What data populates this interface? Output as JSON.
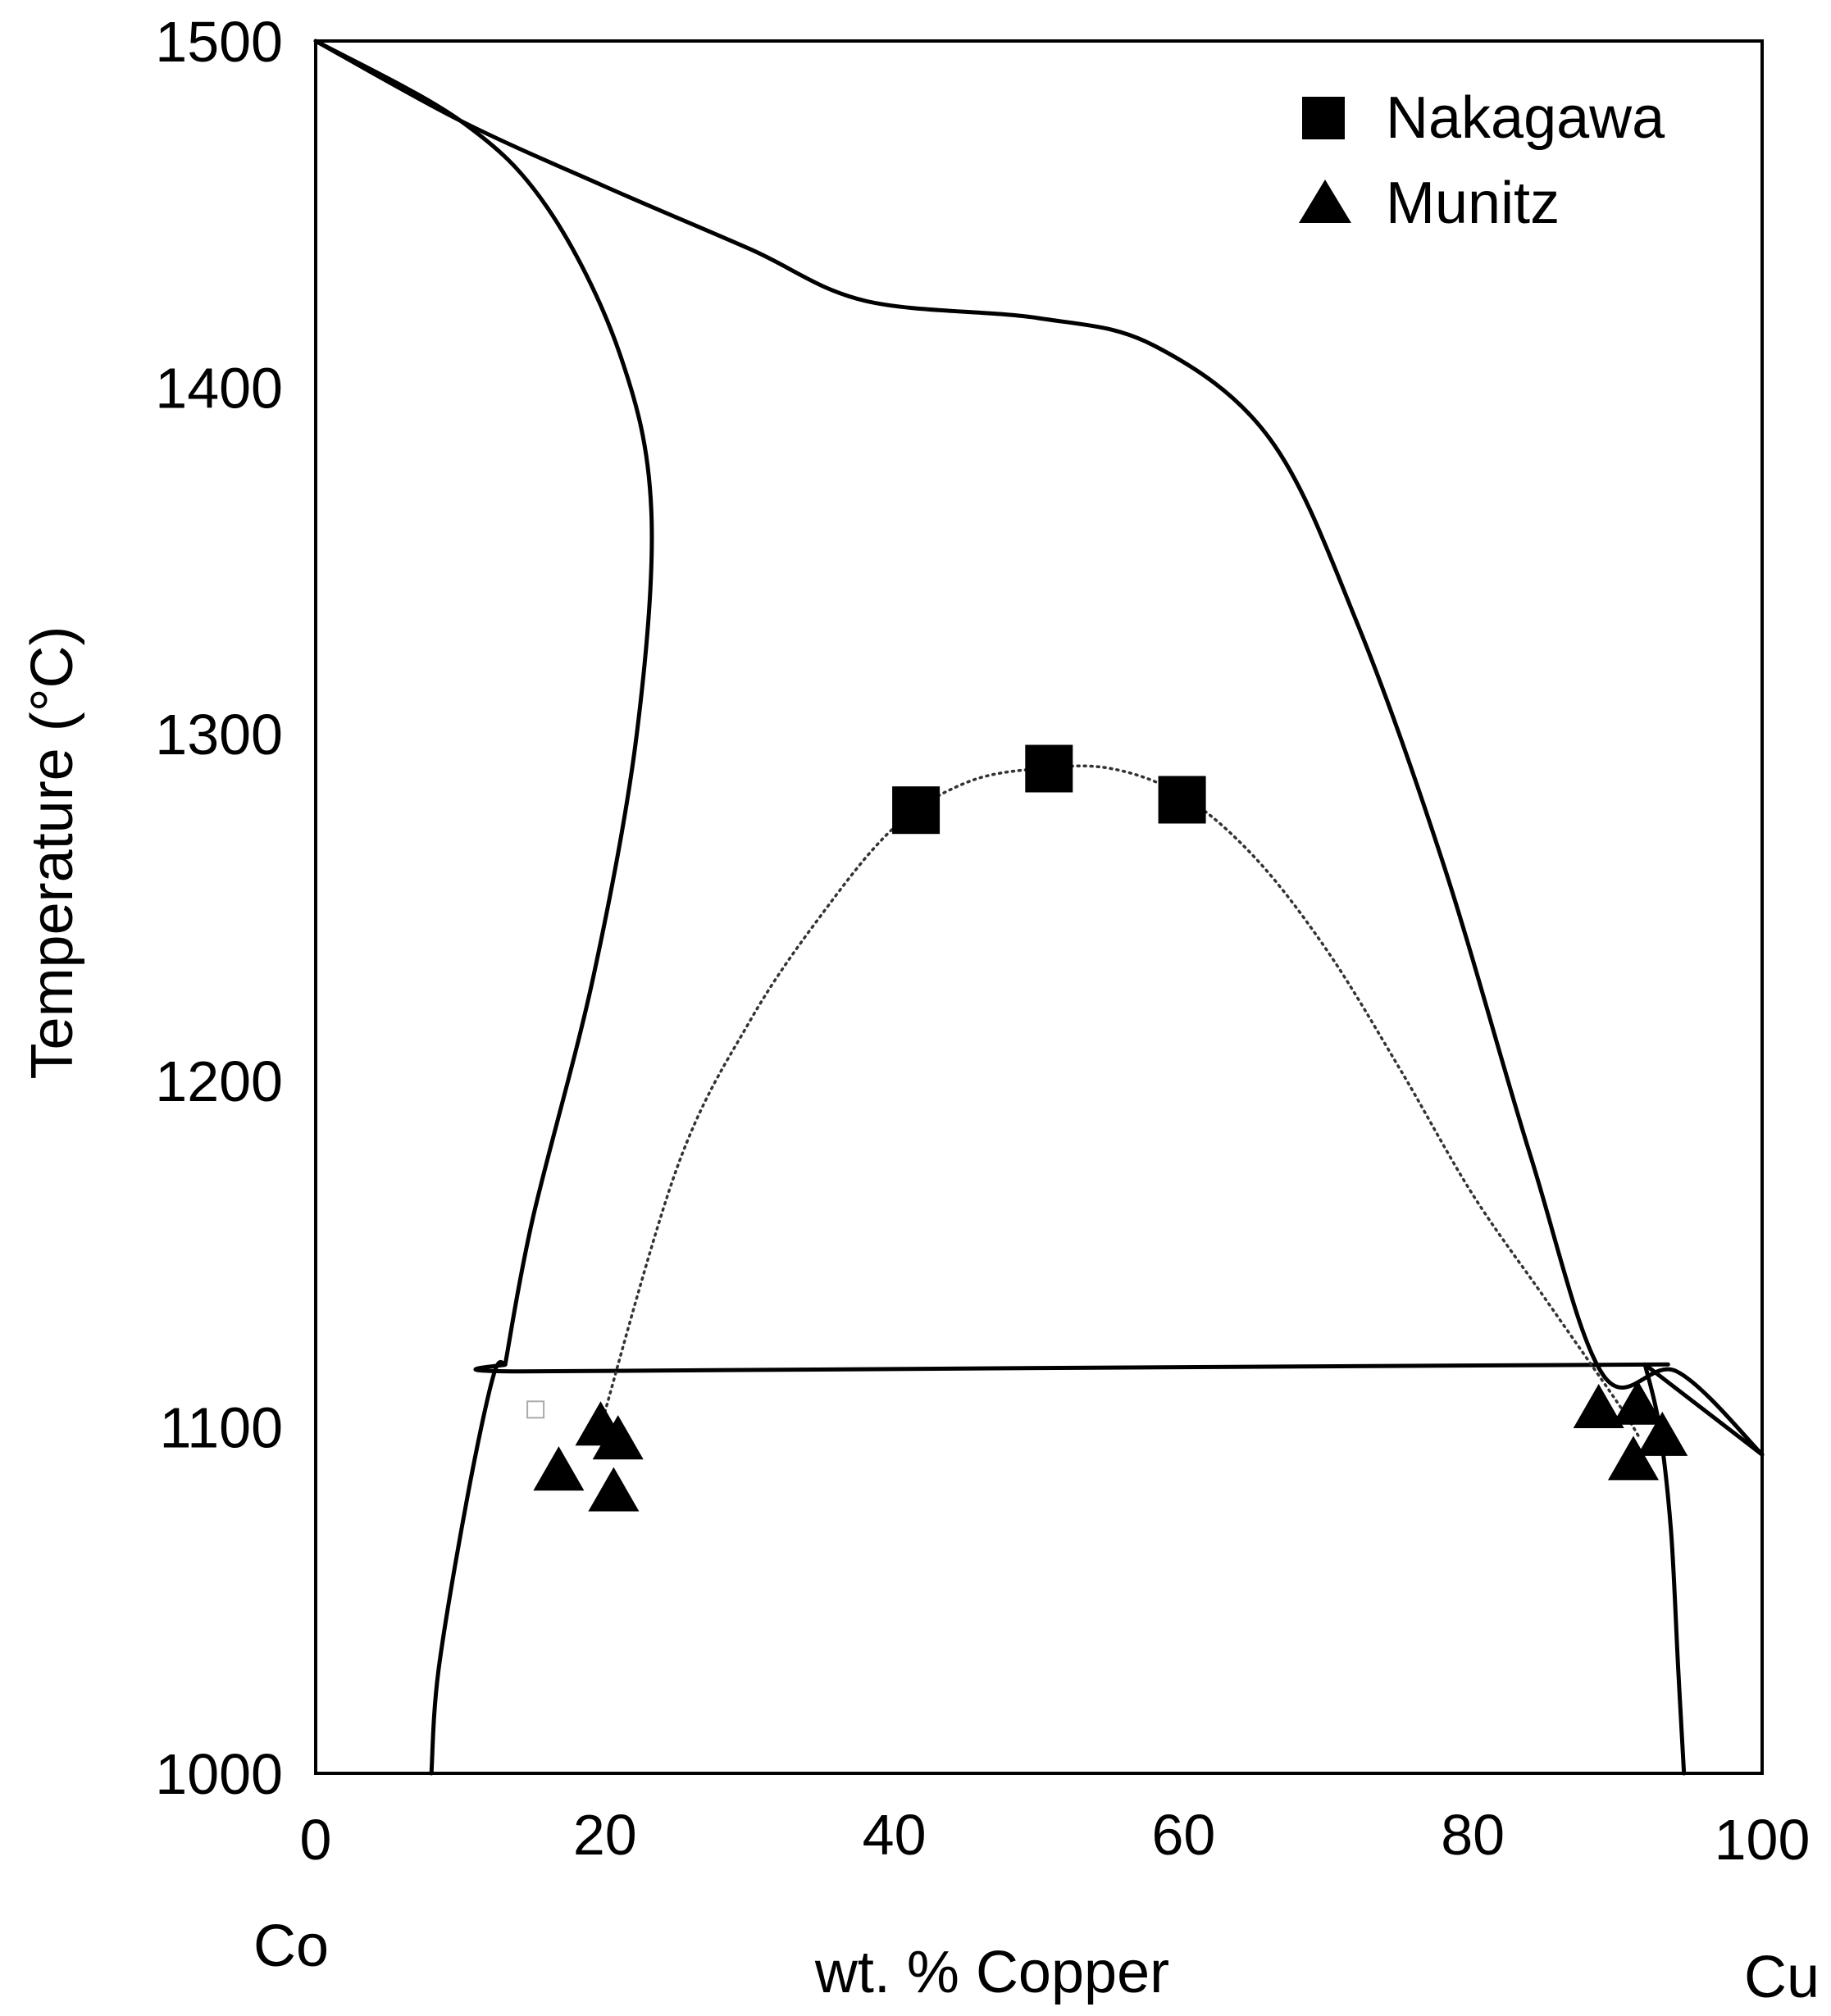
{
  "chart_data": {
    "type": "scatter",
    "title": "",
    "xlabel": "wt. % Copper",
    "ylabel": "Temperature (°C)",
    "xlim": [
      0,
      100
    ],
    "ylim": [
      1000,
      1500
    ],
    "xticks": [
      0,
      20,
      40,
      60,
      80,
      100
    ],
    "yticks": [
      1000,
      1100,
      1200,
      1300,
      1400,
      1500
    ],
    "x_end_labels": {
      "left": "Co",
      "right": "Cu"
    },
    "grid": false,
    "legend_position": "top-right",
    "series": [
      {
        "name": "Nakagawa",
        "marker": "square",
        "color": "#000000",
        "points": [
          [
            41.5,
            1278
          ],
          [
            50.7,
            1290
          ],
          [
            59.9,
            1281
          ]
        ]
      },
      {
        "name": "Munitz",
        "marker": "triangle",
        "color": "#000000",
        "points": [
          [
            16.8,
            1088
          ],
          [
            19.7,
            1101
          ],
          [
            20.9,
            1097
          ],
          [
            20.6,
            1082
          ],
          [
            88.7,
            1106
          ],
          [
            91.4,
            1107
          ],
          [
            91.1,
            1091
          ],
          [
            93.1,
            1098
          ]
        ]
      }
    ],
    "phase_boundaries": [
      {
        "name": "liquidus",
        "style": "solid",
        "points": [
          [
            0,
            1500
          ],
          [
            10,
            1477
          ],
          [
            20,
            1458
          ],
          [
            30,
            1440
          ],
          [
            38,
            1425
          ],
          [
            50,
            1420
          ],
          [
            58,
            1412
          ],
          [
            66,
            1385
          ],
          [
            72,
            1332
          ],
          [
            78,
            1262
          ],
          [
            84,
            1178
          ],
          [
            89,
            1115
          ],
          [
            94.1,
            1116
          ],
          [
            100,
            1092
          ]
        ]
      },
      {
        "name": "co-rich-solidus",
        "style": "solid",
        "points": [
          [
            0,
            1500
          ],
          [
            10,
            1477
          ],
          [
            16,
            1452
          ],
          [
            21,
            1410
          ],
          [
            23.2,
            1365
          ],
          [
            22.2,
            1300
          ],
          [
            19.2,
            1230
          ],
          [
            15,
            1160
          ],
          [
            13.1,
            1118
          ]
        ]
      },
      {
        "name": "eutectic-line",
        "style": "solid",
        "points": [
          [
            13.1,
            1118
          ],
          [
            14,
            1116
          ],
          [
            50,
            1117
          ],
          [
            93.5,
            1118
          ]
        ]
      },
      {
        "name": "co-rich-solvus",
        "style": "solid",
        "points": [
          [
            13.1,
            1118
          ],
          [
            12.3,
            1115
          ],
          [
            10.5,
            1080
          ],
          [
            8.5,
            1030
          ],
          [
            8.0,
            1000
          ]
        ]
      },
      {
        "name": "cu-rich-solidus",
        "style": "solid",
        "points": [
          [
            91.9,
            1118
          ],
          [
            100,
            1092
          ]
        ]
      },
      {
        "name": "cu-rich-solvus",
        "style": "solid",
        "points": [
          [
            91.9,
            1118
          ],
          [
            92.9,
            1100
          ],
          [
            93.7,
            1070
          ],
          [
            94.2,
            1030
          ],
          [
            94.6,
            1000
          ]
        ]
      },
      {
        "name": "miscibility-gap",
        "style": "dotted",
        "points": [
          [
            19.5,
            1097
          ],
          [
            25,
            1175
          ],
          [
            30,
            1217
          ],
          [
            35,
            1248
          ],
          [
            40,
            1273
          ],
          [
            45,
            1286
          ],
          [
            50,
            1290
          ],
          [
            55,
            1290
          ],
          [
            60,
            1282
          ],
          [
            65,
            1264
          ],
          [
            70,
            1237
          ],
          [
            75,
            1203
          ],
          [
            80,
            1167
          ],
          [
            85,
            1137
          ],
          [
            90,
            1107
          ],
          [
            91.5,
            1097
          ]
        ]
      }
    ],
    "stray_marker": {
      "type": "hollow-square",
      "point": [
        15.2,
        1105
      ]
    }
  }
}
